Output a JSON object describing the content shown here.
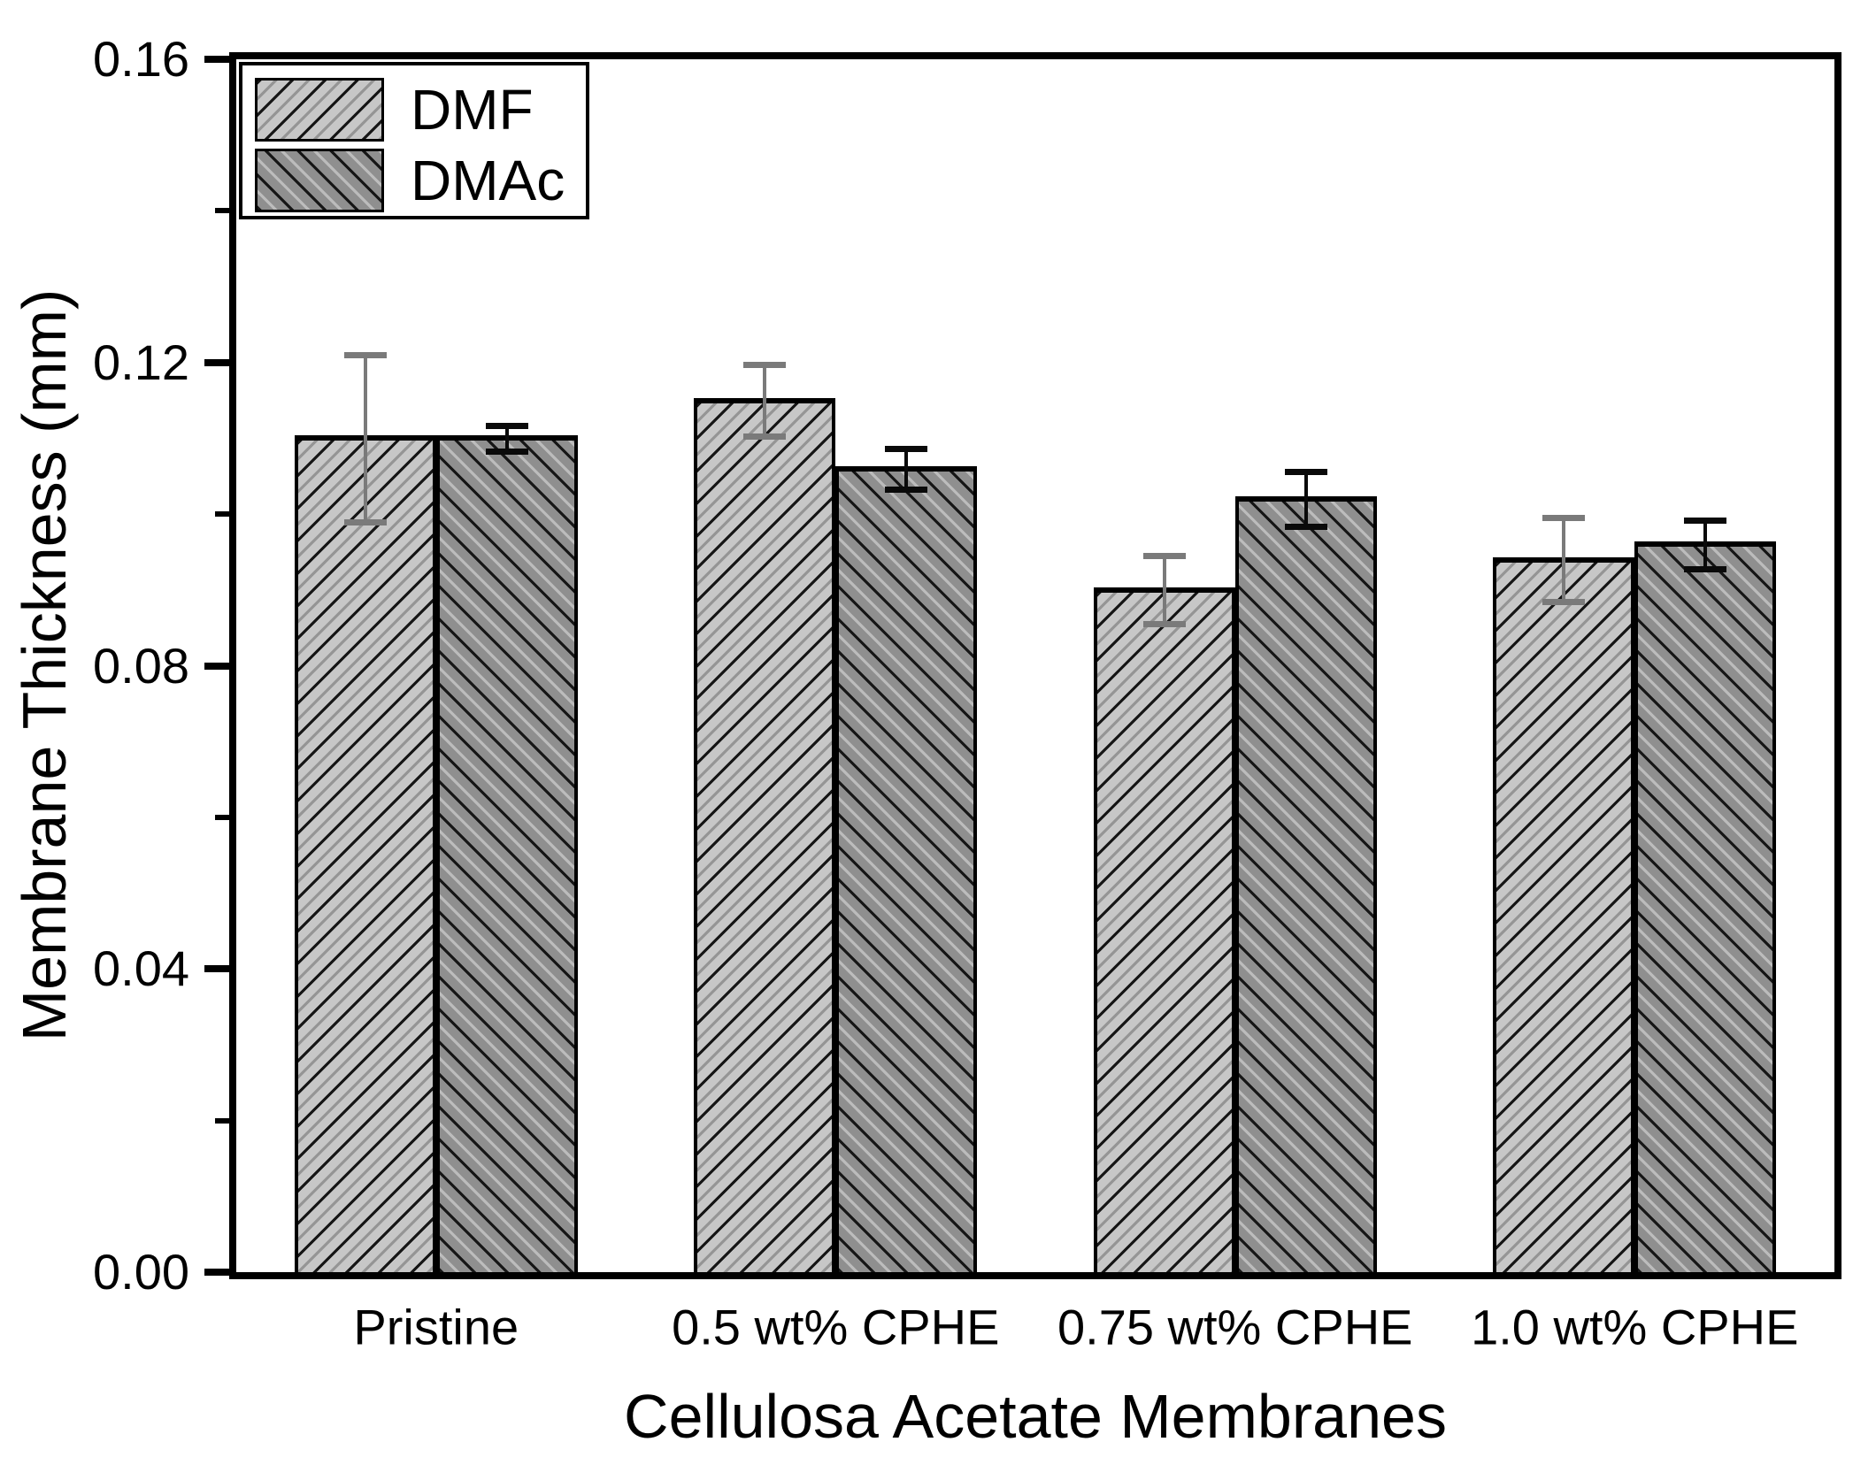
{
  "figure": {
    "background": "#ffffff",
    "axis_color": "#000000",
    "text_color": "#000000"
  },
  "chart_data": {
    "type": "bar",
    "title": "",
    "xlabel": "Cellulosa Acetate Membranes",
    "ylabel": "Membrane Thickness (mm)",
    "categories": [
      "Pristine",
      "0.5 wt% CPHE",
      "0.75 wt% CPHE",
      "1.0 wt% CPHE"
    ],
    "series": [
      {
        "name": "DMF",
        "values": [
          0.11,
          0.115,
          0.09,
          0.094
        ],
        "errors": [
          0.011,
          0.0047,
          0.0045,
          0.0055
        ],
        "fill": "#c7c7c7",
        "hatch": "/",
        "hatch_line_color": "#161616",
        "hatch_companion_color": "#959595",
        "error_bar_color": "#7a7a7a"
      },
      {
        "name": "DMAc",
        "values": [
          0.11,
          0.106,
          0.102,
          0.096
        ],
        "errors": [
          0.0017,
          0.0027,
          0.0036,
          0.0032
        ],
        "fill": "#8f8f8f",
        "hatch": "\\",
        "hatch_line_color": "#161616",
        "hatch_companion_color": "#bcbcbc",
        "error_bar_color": "#0a0a0a"
      }
    ],
    "ylim": [
      0,
      0.16
    ],
    "yticks": [
      {
        "value": 0.0,
        "label": "0.00"
      },
      {
        "value": 0.04,
        "label": "0.04"
      },
      {
        "value": 0.08,
        "label": "0.08"
      },
      {
        "value": 0.12,
        "label": "0.12"
      },
      {
        "value": 0.16,
        "label": "0.16"
      }
    ],
    "minor_yticks": [
      0.02,
      0.06,
      0.1,
      0.14
    ],
    "legend": {
      "position": "top-left",
      "entries": [
        "DMF",
        "DMAc"
      ]
    },
    "grid": false
  }
}
